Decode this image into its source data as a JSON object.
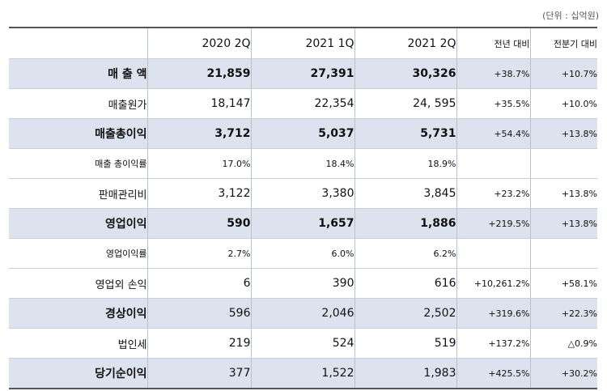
{
  "unit_label": "(단위 : 십억원)",
  "columns": [
    "2020 2Q",
    "2021 1Q",
    "2021 2Q",
    "전년 대비",
    "전분기 대비"
  ],
  "rows": [
    {
      "label": "매 출 액",
      "v1": "21,859",
      "v2": "27,391",
      "v3": "30,326",
      "yoy": "+38.7%",
      "qoq": "+10.7%"
    },
    {
      "label": "매출원가",
      "v1": "18,147",
      "v2": "22,354",
      "v3": "24, 595",
      "yoy": "+35.5%",
      "qoq": "+10.0%"
    },
    {
      "label": "매출총이익",
      "v1": "3,712",
      "v2": "5,037",
      "v3": "5,731",
      "yoy": "+54.4%",
      "qoq": "+13.8%"
    },
    {
      "label": "매출 총이익률",
      "v1": "17.0%",
      "v2": "18.4%",
      "v3": "18.9%",
      "yoy": "",
      "qoq": ""
    },
    {
      "label": "판매관리비",
      "v1": "3,122",
      "v2": "3,380",
      "v3": "3,845",
      "yoy": "+23.2%",
      "qoq": "+13.8%"
    },
    {
      "label": "영업이익",
      "v1": "590",
      "v2": "1,657",
      "v3": "1,886",
      "yoy": "+219.5%",
      "qoq": "+13.8%"
    },
    {
      "label": "영업이익률",
      "v1": "2.7%",
      "v2": "6.0%",
      "v3": "6.2%",
      "yoy": "",
      "qoq": ""
    },
    {
      "label": "영업외 손익",
      "v1": "6",
      "v2": "390",
      "v3": "616",
      "yoy": "+10,261.2%",
      "qoq": "+58.1%"
    },
    {
      "label": "경상이익",
      "v1": "596",
      "v2": "2,046",
      "v3": "2,502",
      "yoy": "+319.6%",
      "qoq": "+22.3%"
    },
    {
      "label": "법인세",
      "v1": "219",
      "v2": "524",
      "v3": "519",
      "yoy": "+137.2%",
      "qoq": "△0.9%"
    },
    {
      "label": "당기순이익",
      "v1": "377",
      "v2": "1,522",
      "v3": "1,983",
      "yoy": "+425.5%",
      "qoq": "+30.2%"
    }
  ]
}
